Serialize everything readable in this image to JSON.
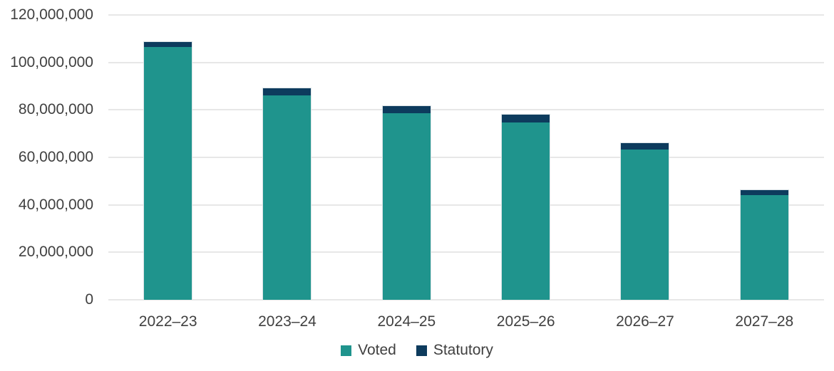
{
  "chart_data": {
    "type": "bar",
    "stacked": true,
    "title": "",
    "xlabel": "",
    "ylabel": "",
    "ylim": [
      0,
      120000000
    ],
    "grid": "horizontal",
    "gridline_color": "#e7e7e7",
    "text_color": "#404040",
    "legend_position": "bottom",
    "categories": [
      "2022–23",
      "2023–24",
      "2024–25",
      "2025–26",
      "2026–27",
      "2027–28"
    ],
    "series": [
      {
        "name": "Voted",
        "color": "#1F948D",
        "values": [
          106400000,
          86100000,
          78600000,
          74800000,
          63400000,
          44000000
        ]
      },
      {
        "name": "Statutory",
        "color": "#0D3B5D",
        "values": [
          2300000,
          2900000,
          2900000,
          3200000,
          2700000,
          2300000
        ]
      }
    ],
    "y_ticks": [
      {
        "value": 0,
        "label": "0"
      },
      {
        "value": 20000000,
        "label": "20,000,000"
      },
      {
        "value": 40000000,
        "label": "40,000,000"
      },
      {
        "value": 60000000,
        "label": "60,000,000"
      },
      {
        "value": 80000000,
        "label": "80,000,000"
      },
      {
        "value": 100000000,
        "label": "100,000,000"
      },
      {
        "value": 120000000,
        "label": "120,000,000"
      }
    ],
    "legend": [
      {
        "label": "Voted"
      },
      {
        "label": "Statutory"
      }
    ]
  }
}
